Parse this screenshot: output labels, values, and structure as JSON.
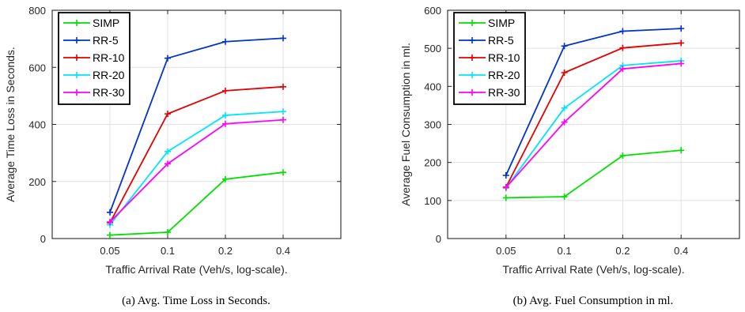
{
  "chart_data": [
    {
      "type": "line",
      "caption": "(a) Avg. Time Loss in Seconds.",
      "xlabel": "Traffic Arrival Rate (Veh/s, log-scale).",
      "ylabel": "Average Time Loss in Seconds.",
      "x": [
        0.05,
        0.1,
        0.2,
        0.4
      ],
      "x_tick_labels": [
        "0.05",
        "0.1",
        "0.2",
        "0.4"
      ],
      "x_scale": "log",
      "ylim": [
        0,
        800
      ],
      "y_ticks": [
        0,
        200,
        400,
        600,
        800
      ],
      "grid": true,
      "legend": "top-left",
      "series": [
        {
          "name": "SIMP",
          "color": "#00e000",
          "values": [
            12,
            22,
            208,
            232
          ]
        },
        {
          "name": "RR-5",
          "color": "#0033cc",
          "values": [
            92,
            632,
            690,
            702
          ]
        },
        {
          "name": "RR-10",
          "color": "#e60000",
          "values": [
            55,
            437,
            518,
            532
          ]
        },
        {
          "name": "RR-20",
          "color": "#00e5ff",
          "values": [
            48,
            305,
            432,
            445
          ]
        },
        {
          "name": "RR-30",
          "color": "#ff00ff",
          "values": [
            58,
            262,
            402,
            416
          ]
        }
      ]
    },
    {
      "type": "line",
      "caption": "(b) Avg. Fuel Consumption in ml.",
      "xlabel": "Traffic Arrival Rate (Veh/s, log-scale).",
      "ylabel": "Average Fuel Consumption in ml.",
      "x": [
        0.05,
        0.1,
        0.2,
        0.4
      ],
      "x_tick_labels": [
        "0.05",
        "0.1",
        "0.2",
        "0.4"
      ],
      "x_scale": "log",
      "ylim": [
        0,
        600
      ],
      "y_ticks": [
        0,
        100,
        200,
        300,
        400,
        500,
        600
      ],
      "grid": true,
      "legend": "top-left",
      "series": [
        {
          "name": "SIMP",
          "color": "#00e000",
          "values": [
            107,
            110,
            218,
            232
          ]
        },
        {
          "name": "RR-5",
          "color": "#0033cc",
          "values": [
            166,
            506,
            545,
            552
          ]
        },
        {
          "name": "RR-10",
          "color": "#e60000",
          "values": [
            135,
            436,
            501,
            514
          ]
        },
        {
          "name": "RR-20",
          "color": "#00e5ff",
          "values": [
            133,
            343,
            455,
            467
          ]
        },
        {
          "name": "RR-30",
          "color": "#ff00ff",
          "values": [
            134,
            306,
            446,
            460
          ]
        }
      ]
    }
  ]
}
